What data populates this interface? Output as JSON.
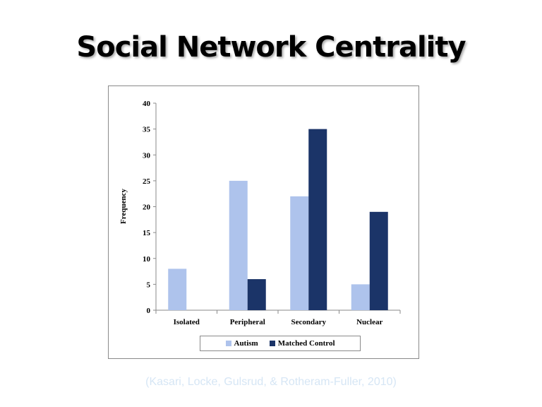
{
  "slide": {
    "title": "Social Network Centrality",
    "citation": "(Kasari, Locke, Gulsrud, & Rotheram-Fuller, 2010)"
  },
  "colors": {
    "autism": "#aec3ec",
    "matched_control": "#1b3468"
  },
  "chart_data": {
    "type": "bar",
    "categories": [
      "Isolated",
      "Peripheral",
      "Secondary",
      "Nuclear"
    ],
    "series": [
      {
        "name": "Autism",
        "values": [
          8,
          25,
          22,
          5
        ]
      },
      {
        "name": "Matched Control",
        "values": [
          0,
          6,
          35,
          19
        ]
      }
    ],
    "title": "",
    "xlabel": "",
    "ylabel": "Frequency",
    "ylim": [
      0,
      40
    ],
    "yticks": [
      0,
      5,
      10,
      15,
      20,
      25,
      30,
      35,
      40
    ],
    "grid": false,
    "legend": "bottom"
  }
}
